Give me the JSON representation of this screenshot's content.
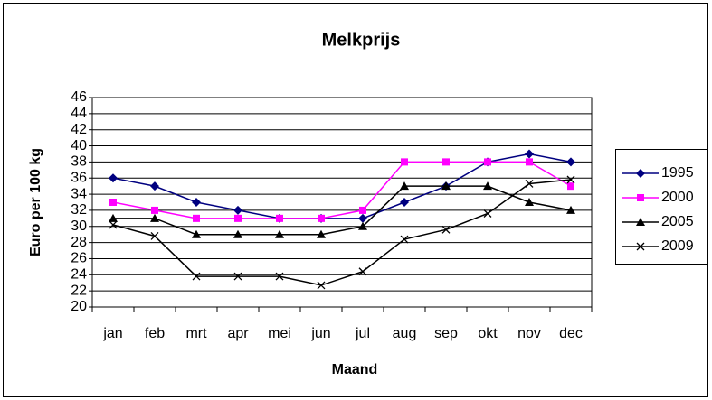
{
  "chart_data": {
    "type": "line",
    "title": "Melkprijs",
    "x_label": "Maand",
    "y_label": "Euro per 100 kg",
    "categories": [
      "jan",
      "feb",
      "mrt",
      "apr",
      "mei",
      "jun",
      "jul",
      "aug",
      "sep",
      "okt",
      "nov",
      "dec"
    ],
    "ylim": [
      20,
      46
    ],
    "yticks": [
      20,
      22,
      24,
      26,
      28,
      30,
      32,
      34,
      36,
      38,
      40,
      42,
      44,
      46
    ],
    "grid": true,
    "legend": "right",
    "series": [
      {
        "name": "1995",
        "color": "#000080",
        "marker": "diamond",
        "values": [
          36,
          35,
          33,
          32,
          31,
          31,
          31,
          33,
          35,
          38,
          39,
          38
        ]
      },
      {
        "name": "2000",
        "color": "#ff00ff",
        "marker": "square",
        "values": [
          33,
          32,
          31,
          31,
          31,
          31,
          32,
          38,
          38,
          38,
          38,
          35
        ]
      },
      {
        "name": "2005",
        "color": "#000000",
        "marker": "triangle",
        "values": [
          31,
          31,
          29,
          29,
          29,
          29,
          30,
          35,
          35,
          35,
          33,
          32
        ]
      },
      {
        "name": "2009",
        "color": "#000000",
        "marker": "x",
        "values": [
          30.2,
          28.8,
          23.8,
          23.8,
          23.8,
          22.7,
          24.4,
          28.4,
          29.6,
          31.6,
          35.3,
          35.8
        ]
      }
    ]
  }
}
